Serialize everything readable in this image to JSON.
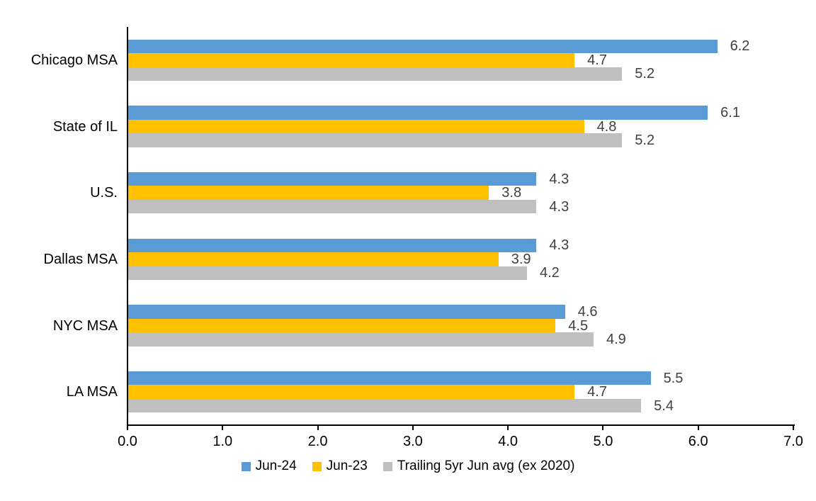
{
  "chart_data": {
    "type": "bar",
    "orientation": "horizontal",
    "categories": [
      "Chicago MSA",
      "State of IL",
      "U.S.",
      "Dallas MSA",
      "NYC MSA",
      "LA MSA"
    ],
    "series": [
      {
        "name": "Jun-24",
        "color": "#5B9BD5",
        "values": [
          6.2,
          6.1,
          4.3,
          4.3,
          4.6,
          5.5
        ]
      },
      {
        "name": "Jun-23",
        "color": "#FFC000",
        "values": [
          4.7,
          4.8,
          3.8,
          3.9,
          4.5,
          4.7
        ]
      },
      {
        "name": "Trailing 5yr Jun avg (ex 2020)",
        "color": "#BFBFBF",
        "values": [
          5.2,
          5.2,
          4.3,
          4.2,
          4.9,
          5.4
        ]
      }
    ],
    "xlim": [
      0,
      7
    ],
    "x_ticks": [
      "0.0",
      "1.0",
      "2.0",
      "3.0",
      "4.0",
      "5.0",
      "6.0",
      "7.0"
    ],
    "data_labels": true,
    "data_label_decimals": 1,
    "grid": false,
    "legend_position": "bottom"
  },
  "colors": {
    "axis": "#000000",
    "data_label": "#404040",
    "category_label": "#000000",
    "background": "#FFFFFF"
  }
}
